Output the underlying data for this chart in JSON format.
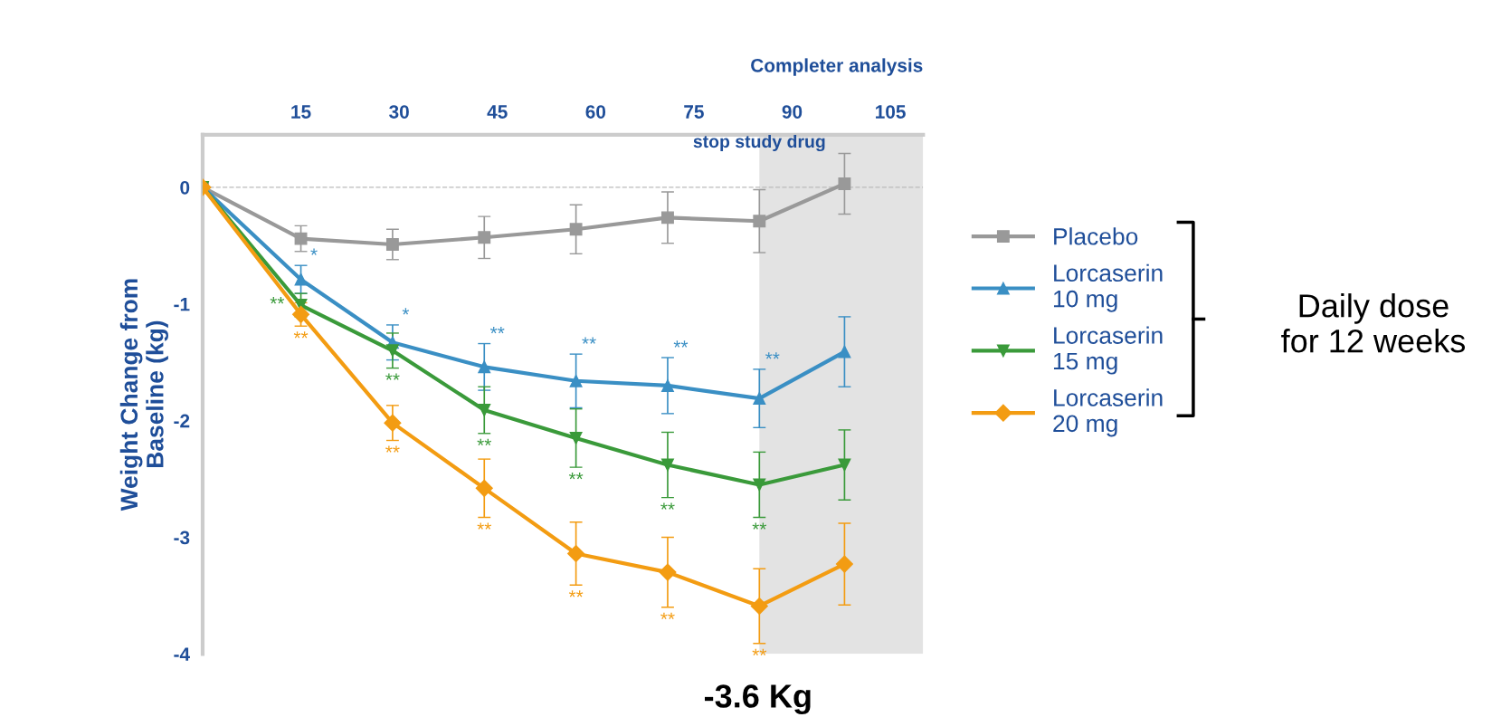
{
  "chart_data": {
    "type": "line",
    "title": "Completer analysis",
    "ylabel": "Weight Change from\nBaseline (kg)",
    "x": [
      0,
      15,
      29,
      43,
      57,
      71,
      85,
      98
    ],
    "series": [
      {
        "name": "Placebo",
        "color": "#999999",
        "marker": "square",
        "values": [
          0,
          -0.44,
          -0.49,
          -0.43,
          -0.36,
          -0.26,
          -0.29,
          0.03
        ],
        "errors": [
          null,
          0.11,
          0.13,
          0.18,
          0.21,
          0.22,
          0.27,
          0.26
        ]
      },
      {
        "name": "Lorcaserin\n10 mg",
        "color": "#3a8fc4",
        "marker": "triangle",
        "values": [
          0,
          -0.79,
          -1.33,
          -1.54,
          -1.66,
          -1.7,
          -1.81,
          -1.41
        ],
        "errors": [
          null,
          0.12,
          0.15,
          0.2,
          0.23,
          0.24,
          0.25,
          0.3
        ],
        "value_labels": [
          null,
          "*",
          "*",
          "**",
          "**",
          "**",
          "**",
          null
        ]
      },
      {
        "name": "Lorcaserin\n15 mg",
        "color": "#3a9a3a",
        "marker": "triangle_down",
        "values": [
          0,
          -1.01,
          -1.4,
          -1.91,
          -2.15,
          -2.38,
          -2.55,
          -2.38
        ],
        "errors": [
          null,
          0.1,
          0.15,
          0.2,
          0.25,
          0.28,
          0.28,
          0.3
        ],
        "value_labels": [
          null,
          "**",
          "**",
          "**",
          "**",
          "**",
          "**",
          null
        ]
      },
      {
        "name": "Lorcaserin\n20 mg",
        "color": "#f39c12",
        "marker": "diamond",
        "values": [
          0,
          -1.09,
          -2.02,
          -2.58,
          -3.14,
          -3.3,
          -3.59,
          -3.23
        ],
        "errors": [
          null,
          0.1,
          0.15,
          0.25,
          0.27,
          0.3,
          0.32,
          0.35
        ],
        "value_labels": [
          null,
          "**",
          "**",
          "**",
          "**",
          "**",
          "**",
          null
        ]
      }
    ],
    "xlim": [
      0,
      110
    ],
    "xticks": [
      15,
      30,
      45,
      60,
      75,
      90,
      105
    ],
    "ylim": [
      -4,
      0.45
    ],
    "yticks": [
      0,
      -1,
      -2,
      -3,
      -4
    ],
    "ref_lines": [
      {
        "axis": "y",
        "value": 0,
        "color": "#bbbbbb",
        "line_style": "dashed"
      }
    ],
    "bands": [
      {
        "axis": "x",
        "from": 85,
        "to": 110,
        "label": "stop study drug",
        "color": "#d0d0d0"
      }
    ],
    "legend": "right",
    "annotations": [
      "Daily dose\nfor 12 weeks",
      "-3.6 Kg"
    ]
  }
}
